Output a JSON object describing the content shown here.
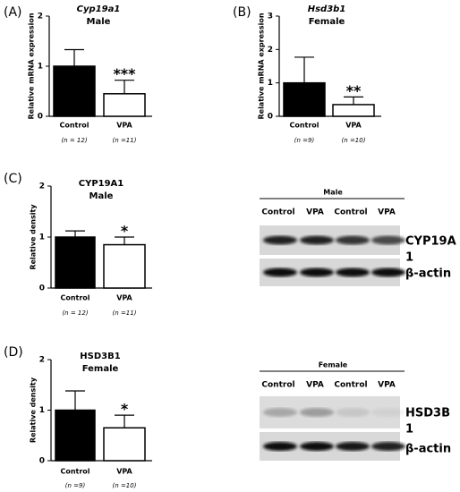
{
  "chart_data": [
    {
      "type": "bar",
      "panel": "(A)",
      "title": "Cyp19a1",
      "title_italic": true,
      "subtitle": "Male",
      "y_label": "Relative mRNA expression",
      "categories": [
        "Control",
        "VPA"
      ],
      "sublabels": [
        "(n = 12)",
        "(n =11)"
      ],
      "values": [
        1,
        0.45
      ],
      "errors": [
        0.33,
        0.27
      ],
      "colors": [
        "#000000",
        "#ffffff"
      ],
      "significance": [
        null,
        "***"
      ],
      "ylim": [
        0,
        2
      ],
      "yticks": [
        0,
        1,
        2
      ]
    },
    {
      "type": "bar",
      "panel": "(B)",
      "title": "Hsd3b1",
      "title_italic": true,
      "subtitle": "Female",
      "y_label": "Relative mRNA expression",
      "categories": [
        "Control",
        "VPA"
      ],
      "sublabels": [
        "(n =9)",
        "(n =10)"
      ],
      "values": [
        1,
        0.35
      ],
      "errors": [
        0.77,
        0.23
      ],
      "colors": [
        "#000000",
        "#ffffff"
      ],
      "significance": [
        null,
        "**"
      ],
      "ylim": [
        0,
        3
      ],
      "yticks": [
        0,
        1,
        2,
        3
      ]
    },
    {
      "type": "bar",
      "panel": "(C)",
      "title": "CYP19A1",
      "title_italic": false,
      "subtitle": "Male",
      "y_label": "Relative density",
      "categories": [
        "Control",
        "VPA"
      ],
      "sublabels": [
        "(n = 12)",
        "(n =11)"
      ],
      "values": [
        1,
        0.85
      ],
      "errors": [
        0.12,
        0.15
      ],
      "colors": [
        "#000000",
        "#ffffff"
      ],
      "significance": [
        null,
        "*"
      ],
      "ylim": [
        0,
        2
      ],
      "yticks": [
        0,
        1,
        2
      ]
    },
    {
      "type": "bar",
      "panel": "(D)",
      "title": "HSD3B1",
      "title_italic": false,
      "subtitle": "Female",
      "y_label": "Relative density",
      "categories": [
        "Control",
        "VPA"
      ],
      "sublabels": [
        "(n =9)",
        "(n =10)"
      ],
      "values": [
        1,
        0.65
      ],
      "errors": [
        0.38,
        0.25
      ],
      "colors": [
        "#000000",
        "#ffffff"
      ],
      "significance": [
        null,
        "*"
      ],
      "ylim": [
        0,
        2
      ],
      "yticks": [
        0,
        1,
        2
      ]
    }
  ],
  "blots": [
    {
      "header": "Male",
      "lanes": [
        "Control",
        "VPA",
        "Control",
        "VPA"
      ],
      "rows": [
        [
          "CYP19A",
          "1"
        ],
        [
          "β-actin"
        ]
      ]
    },
    {
      "header": "Female",
      "lanes": [
        "Control",
        "VPA",
        "Control",
        "VPA"
      ],
      "rows": [
        [
          "HSD3B",
          "1"
        ],
        [
          "β-actin"
        ]
      ]
    }
  ]
}
